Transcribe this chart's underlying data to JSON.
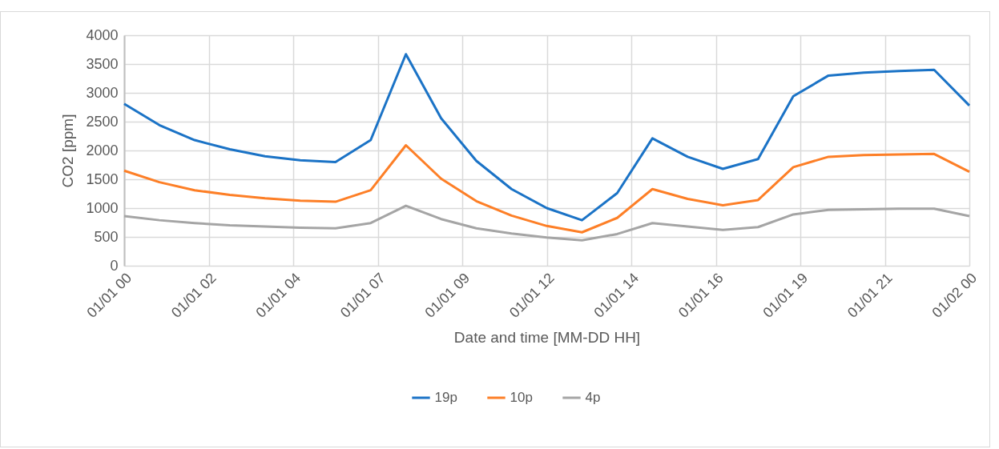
{
  "chart_data": {
    "type": "line",
    "xlabel": "Date and time [MM-DD HH]",
    "ylabel": "CO2 [ppm]",
    "x": [
      "--01-01T00:00",
      "--01-01T01:00",
      "--01-01T02:00",
      "--01-01T03:00",
      "--01-01T04:00",
      "--01-01T05:00",
      "--01-01T06:00",
      "--01-01T07:00",
      "--01-01T08:00",
      "--01-01T09:00",
      "--01-01T10:00",
      "--01-01T11:00",
      "--01-01T12:00",
      "--01-01T13:00",
      "--01-01T14:00",
      "--01-01T15:00",
      "--01-01T16:00",
      "--01-01T17:00",
      "--01-01T18:00",
      "--01-01T19:00",
      "--01-01T20:00",
      "--01-01T21:00",
      "--01-01T22:00",
      "--01-01T23:00",
      "--01-02T00:00"
    ],
    "series": [
      {
        "name": "19p",
        "color": "#1b73c6",
        "values": [
          2810,
          2440,
          2180,
          2020,
          1900,
          1830,
          1800,
          2180,
          3670,
          2560,
          1820,
          1330,
          1000,
          790,
          1260,
          2210,
          1890,
          1680,
          1850,
          2940,
          3300,
          3350,
          3380,
          3400,
          2780
        ]
      },
      {
        "name": "10p",
        "color": "#fd7f27",
        "values": [
          1650,
          1450,
          1310,
          1230,
          1170,
          1130,
          1110,
          1310,
          2090,
          1510,
          1120,
          870,
          690,
          580,
          830,
          1330,
          1160,
          1050,
          1140,
          1710,
          1890,
          1920,
          1930,
          1940,
          1630
        ]
      },
      {
        "name": "4p",
        "color": "#a5a5a5",
        "values": [
          860,
          790,
          740,
          700,
          680,
          660,
          650,
          740,
          1040,
          810,
          650,
          560,
          490,
          440,
          550,
          740,
          680,
          620,
          670,
          890,
          970,
          980,
          990,
          990,
          860
        ]
      }
    ],
    "xlim": [
      "--01-01T00:00",
      "--01-02T00:00"
    ],
    "xticks": [
      {
        "value": "--01-01T00:00",
        "label": "01/01 00"
      },
      {
        "value": "--01-01T02:24",
        "label": "01/01 02"
      },
      {
        "value": "--01-01T04:48",
        "label": "01/01 04"
      },
      {
        "value": "--01-01T07:12",
        "label": "01/01 07"
      },
      {
        "value": "--01-01T09:36",
        "label": "01/01 09"
      },
      {
        "value": "--01-01T12:00",
        "label": "01/01 12"
      },
      {
        "value": "--01-01T14:24",
        "label": "01/01 14"
      },
      {
        "value": "--01-01T16:48",
        "label": "01/01 16"
      },
      {
        "value": "--01-01T19:12",
        "label": "01/01 19"
      },
      {
        "value": "--01-01T21:36",
        "label": "01/01 21"
      },
      {
        "value": "--01-02T00:00",
        "label": "01/02 00"
      }
    ],
    "ylim": [
      0,
      4000
    ],
    "yticks": [
      0,
      500,
      1000,
      1500,
      2000,
      2500,
      3000,
      3500,
      4000
    ],
    "grid": true,
    "legend": "bottom",
    "marker": "none",
    "line_style": "solid"
  }
}
